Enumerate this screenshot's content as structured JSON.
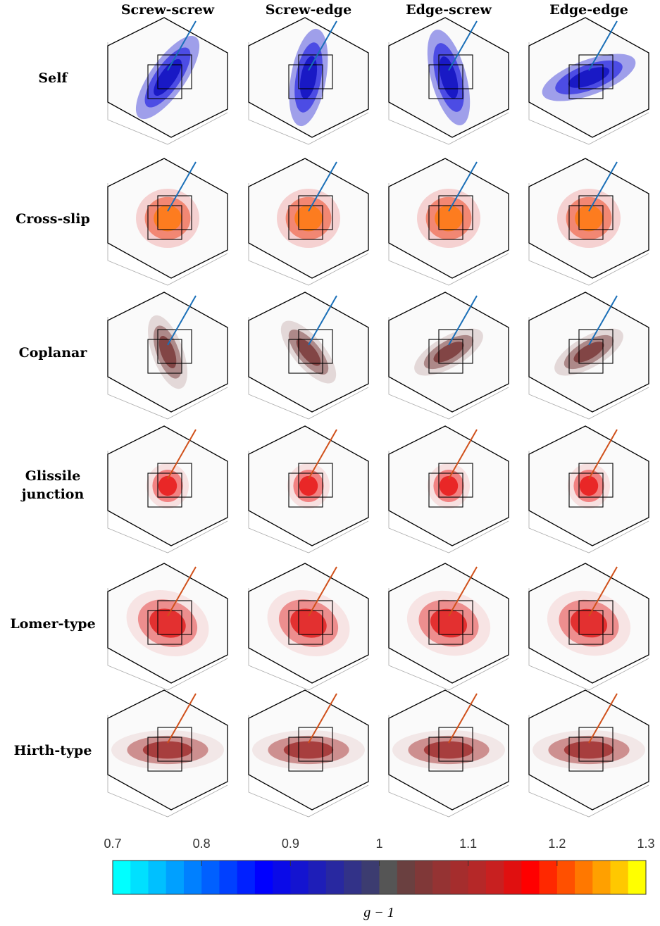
{
  "chart_data": {
    "type": "colorbar-grid",
    "columns": [
      "Screw-screw",
      "Screw-edge",
      "Edge-screw",
      "Edge-edge"
    ],
    "rows": [
      "Self",
      "Cross-slip",
      "Coplanar",
      [
        "Glissile",
        "junction"
      ],
      "Lomer-type",
      "Hirth-type"
    ],
    "xlim": [
      0.7,
      1.3
    ],
    "xticks": [
      0.7,
      0.8,
      0.9,
      1,
      1.1,
      1.2,
      1.3
    ],
    "xlabel": "g − 1",
    "colors": [
      "#00ffff",
      "#00e0ff",
      "#00c0ff",
      "#00a0ff",
      "#0080ff",
      "#0060ff",
      "#0040ff",
      "#0020ff",
      "#0000ff",
      "#0a0ae8",
      "#1414d0",
      "#1e1eb8",
      "#2828a0",
      "#323288",
      "#3c3c70",
      "#555555",
      "#6a4040",
      "#803838",
      "#953333",
      "#a52d2d",
      "#b52828",
      "#c82020",
      "#e01010",
      "#ff0000",
      "#ff2800",
      "#ff5000",
      "#ff7800",
      "#ffa000",
      "#ffc800",
      "#ffff00"
    ]
  }
}
